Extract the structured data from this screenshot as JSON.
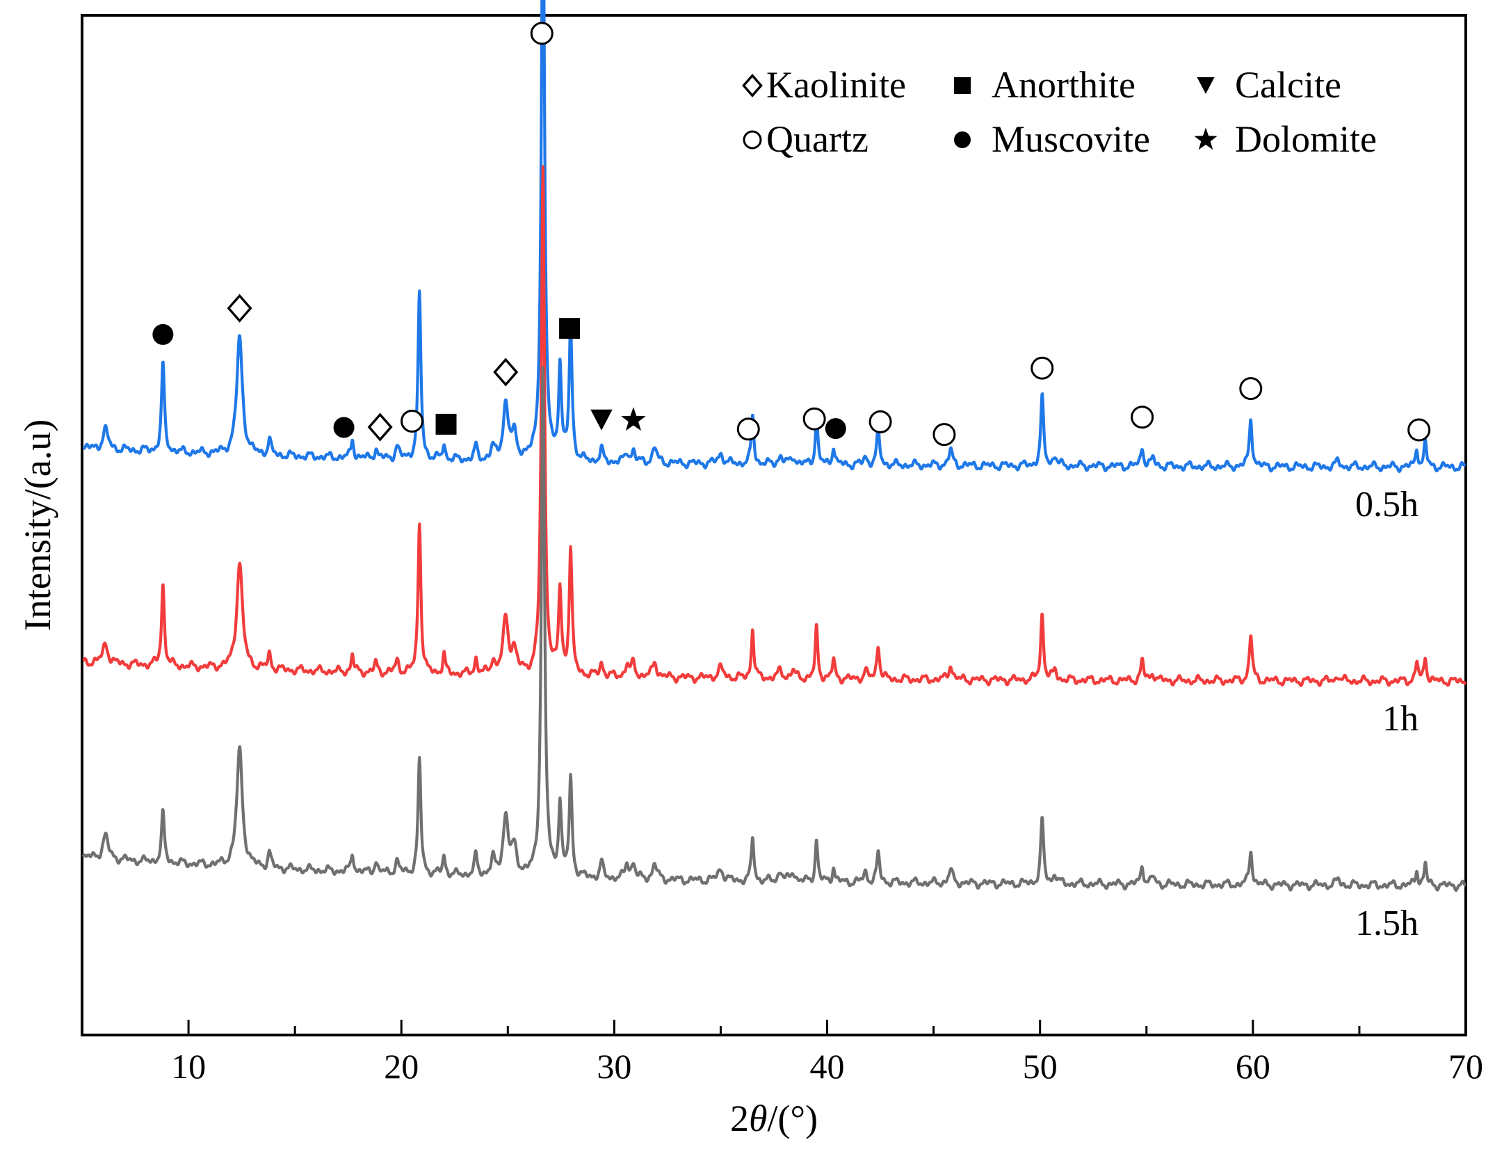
{
  "chart_data": {
    "type": "line",
    "title": "",
    "xlabel_prefix": "2",
    "xlabel_theta": "θ",
    "xlabel_suffix": "/(°)",
    "ylabel": "Intensity/(a.u)",
    "xlim": [
      5,
      70
    ],
    "xticks": [
      10,
      20,
      30,
      40,
      50,
      60,
      70
    ],
    "legend": {
      "row1": [
        {
          "symbol": "diamond-open",
          "label": "Kaolinite"
        },
        {
          "symbol": "square-filled",
          "label": "Anorthite"
        },
        {
          "symbol": "triangle-down",
          "label": "Calcite"
        }
      ],
      "row2": [
        {
          "symbol": "circle-open",
          "label": "Quartz"
        },
        {
          "symbol": "circle-filled",
          "label": "Muscovite"
        },
        {
          "symbol": "star",
          "label": "Dolomite"
        }
      ]
    },
    "series": [
      {
        "name": "0.5h",
        "color": "#1f78e8",
        "offset": 2.15,
        "baseline": {
          "start": 0.3,
          "mid": 0.25,
          "end": 0.2
        },
        "peaks": [
          [
            6.1,
            0.1,
            0.15
          ],
          [
            8.8,
            0.45,
            0.08
          ],
          [
            12.4,
            0.6,
            0.16
          ],
          [
            13.8,
            0.08,
            0.08
          ],
          [
            17.7,
            0.1,
            0.07
          ],
          [
            18.8,
            0.05,
            0.08
          ],
          [
            19.8,
            0.06,
            0.1
          ],
          [
            20.85,
            0.85,
            0.08
          ],
          [
            22.0,
            0.08,
            0.07
          ],
          [
            23.5,
            0.07,
            0.08
          ],
          [
            24.3,
            0.06,
            0.1
          ],
          [
            24.9,
            0.28,
            0.15
          ],
          [
            25.3,
            0.12,
            0.15
          ],
          [
            26.65,
            3.05,
            0.09
          ],
          [
            27.45,
            0.48,
            0.08
          ],
          [
            27.95,
            0.7,
            0.08
          ],
          [
            29.4,
            0.06,
            0.09
          ],
          [
            30.6,
            0.05,
            0.1
          ],
          [
            30.9,
            0.06,
            0.1
          ],
          [
            31.9,
            0.08,
            0.12
          ],
          [
            35.0,
            0.05,
            0.15
          ],
          [
            36.5,
            0.25,
            0.07
          ],
          [
            37.8,
            0.04,
            0.12
          ],
          [
            38.4,
            0.04,
            0.12
          ],
          [
            39.5,
            0.25,
            0.07
          ],
          [
            40.3,
            0.1,
            0.07
          ],
          [
            41.8,
            0.04,
            0.1
          ],
          [
            42.4,
            0.18,
            0.08
          ],
          [
            45.8,
            0.08,
            0.1
          ],
          [
            50.1,
            0.35,
            0.08
          ],
          [
            50.7,
            0.05,
            0.1
          ],
          [
            54.8,
            0.1,
            0.08
          ],
          [
            55.3,
            0.04,
            0.1
          ],
          [
            59.9,
            0.25,
            0.08
          ],
          [
            64.0,
            0.03,
            0.1
          ],
          [
            67.7,
            0.1,
            0.07
          ],
          [
            68.1,
            0.13,
            0.07
          ]
        ],
        "markers": [
          {
            "x": 8.8,
            "symbol": "circle-filled"
          },
          {
            "x": 12.4,
            "symbol": "diamond-open"
          },
          {
            "x": 17.3,
            "symbol": "circle-filled"
          },
          {
            "x": 19.0,
            "symbol": "diamond-open"
          },
          {
            "x": 20.5,
            "symbol": "circle-open"
          },
          {
            "x": 22.1,
            "symbol": "square-filled"
          },
          {
            "x": 24.9,
            "symbol": "diamond-open"
          },
          {
            "x": 26.6,
            "symbol": "circle-open"
          },
          {
            "x": 27.9,
            "symbol": "square-filled"
          },
          {
            "x": 29.4,
            "symbol": "triangle-down"
          },
          {
            "x": 30.9,
            "symbol": "star"
          },
          {
            "x": 36.3,
            "symbol": "circle-open"
          },
          {
            "x": 39.4,
            "symbol": "circle-open"
          },
          {
            "x": 40.4,
            "symbol": "circle-filled"
          },
          {
            "x": 42.5,
            "symbol": "circle-open"
          },
          {
            "x": 45.5,
            "symbol": "circle-open"
          },
          {
            "x": 50.1,
            "symbol": "circle-open"
          },
          {
            "x": 54.8,
            "symbol": "circle-open"
          },
          {
            "x": 59.9,
            "symbol": "circle-open"
          },
          {
            "x": 67.8,
            "symbol": "circle-open"
          }
        ]
      },
      {
        "name": "1h",
        "color": "#f23c3c",
        "offset": 1.05,
        "baseline": {
          "start": 0.3,
          "mid": 0.25,
          "end": 0.2
        },
        "peaks": [
          [
            6.1,
            0.1,
            0.15
          ],
          [
            8.8,
            0.42,
            0.08
          ],
          [
            12.4,
            0.55,
            0.16
          ],
          [
            13.8,
            0.08,
            0.08
          ],
          [
            17.7,
            0.09,
            0.07
          ],
          [
            18.8,
            0.05,
            0.08
          ],
          [
            19.8,
            0.06,
            0.1
          ],
          [
            20.85,
            0.78,
            0.08
          ],
          [
            22.0,
            0.1,
            0.07
          ],
          [
            23.5,
            0.08,
            0.08
          ],
          [
            24.3,
            0.07,
            0.1
          ],
          [
            24.9,
            0.28,
            0.15
          ],
          [
            25.3,
            0.12,
            0.15
          ],
          [
            26.65,
            2.6,
            0.09
          ],
          [
            27.45,
            0.42,
            0.08
          ],
          [
            27.95,
            0.65,
            0.08
          ],
          [
            29.4,
            0.07,
            0.09
          ],
          [
            30.6,
            0.06,
            0.1
          ],
          [
            30.9,
            0.07,
            0.1
          ],
          [
            31.9,
            0.08,
            0.12
          ],
          [
            35.0,
            0.05,
            0.15
          ],
          [
            36.5,
            0.26,
            0.07
          ],
          [
            37.8,
            0.04,
            0.12
          ],
          [
            38.4,
            0.04,
            0.12
          ],
          [
            39.5,
            0.26,
            0.07
          ],
          [
            40.3,
            0.1,
            0.07
          ],
          [
            41.8,
            0.04,
            0.1
          ],
          [
            42.4,
            0.18,
            0.08
          ],
          [
            45.8,
            0.08,
            0.1
          ],
          [
            50.1,
            0.34,
            0.08
          ],
          [
            50.7,
            0.05,
            0.1
          ],
          [
            54.8,
            0.1,
            0.08
          ],
          [
            55.3,
            0.04,
            0.1
          ],
          [
            59.9,
            0.24,
            0.08
          ],
          [
            64.0,
            0.03,
            0.1
          ],
          [
            67.7,
            0.1,
            0.07
          ],
          [
            68.1,
            0.13,
            0.07
          ]
        ],
        "markers": []
      },
      {
        "name": "1.5h",
        "color": "#707070",
        "offset": 0.0,
        "baseline": {
          "start": 0.35,
          "mid": 0.25,
          "end": 0.2
        },
        "peaks": [
          [
            6.1,
            0.12,
            0.15
          ],
          [
            8.8,
            0.25,
            0.08
          ],
          [
            12.4,
            0.6,
            0.16
          ],
          [
            13.8,
            0.08,
            0.08
          ],
          [
            17.7,
            0.1,
            0.07
          ],
          [
            18.8,
            0.06,
            0.08
          ],
          [
            19.8,
            0.06,
            0.1
          ],
          [
            20.85,
            0.58,
            0.08
          ],
          [
            22.0,
            0.1,
            0.07
          ],
          [
            23.5,
            0.1,
            0.08
          ],
          [
            24.3,
            0.08,
            0.1
          ],
          [
            24.9,
            0.3,
            0.15
          ],
          [
            25.3,
            0.13,
            0.15
          ],
          [
            26.65,
            2.6,
            0.09
          ],
          [
            27.45,
            0.38,
            0.08
          ],
          [
            27.95,
            0.5,
            0.08
          ],
          [
            29.4,
            0.08,
            0.09
          ],
          [
            30.6,
            0.08,
            0.1
          ],
          [
            30.9,
            0.08,
            0.1
          ],
          [
            31.9,
            0.08,
            0.12
          ],
          [
            35.0,
            0.06,
            0.15
          ],
          [
            36.5,
            0.23,
            0.07
          ],
          [
            37.8,
            0.05,
            0.12
          ],
          [
            38.4,
            0.05,
            0.12
          ],
          [
            39.5,
            0.22,
            0.07
          ],
          [
            40.3,
            0.08,
            0.07
          ],
          [
            41.8,
            0.05,
            0.1
          ],
          [
            42.4,
            0.15,
            0.08
          ],
          [
            45.8,
            0.07,
            0.1
          ],
          [
            50.1,
            0.33,
            0.08
          ],
          [
            50.7,
            0.05,
            0.1
          ],
          [
            54.8,
            0.1,
            0.08
          ],
          [
            55.3,
            0.04,
            0.1
          ],
          [
            59.9,
            0.18,
            0.08
          ],
          [
            64.0,
            0.03,
            0.1
          ],
          [
            67.7,
            0.08,
            0.07
          ],
          [
            68.1,
            0.11,
            0.07
          ]
        ],
        "markers": []
      }
    ]
  }
}
